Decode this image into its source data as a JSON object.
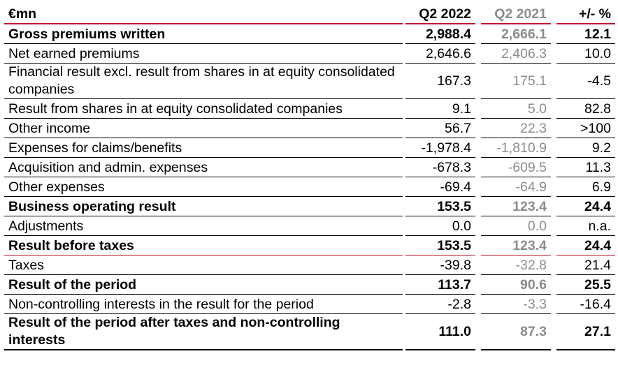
{
  "header": {
    "unit": "€mn",
    "col_q2_2022": "Q2 2022",
    "col_q2_2021": "Q2 2021",
    "col_change": "+/- %"
  },
  "rows": [
    {
      "label": "Gross premiums written",
      "q2_2022": "2,988.4",
      "q2_2021": "2,666.1",
      "change": "12.1",
      "bold": true
    },
    {
      "label": "Net earned premiums",
      "q2_2022": "2,646.6",
      "q2_2021": "2,406.3",
      "change": "10.0",
      "bold": false
    },
    {
      "label": "Financial result excl. result from shares in at equity consolidated companies",
      "q2_2022": "167.3",
      "q2_2021": "175.1",
      "change": "-4.5",
      "bold": false
    },
    {
      "label": "Result from shares in at equity consolidated companies",
      "q2_2022": "9.1",
      "q2_2021": "5.0",
      "change": "82.8",
      "bold": false
    },
    {
      "label": "Other income",
      "q2_2022": "56.7",
      "q2_2021": "22.3",
      "change": ">100",
      "bold": false
    },
    {
      "label": "Expenses for claims/benefits",
      "q2_2022": "-1,978.4",
      "q2_2021": "-1,810.9",
      "change": "9.2",
      "bold": false
    },
    {
      "label": "Acquisition and admin. expenses",
      "q2_2022": "-678.3",
      "q2_2021": "-609.5",
      "change": "11.3",
      "bold": false
    },
    {
      "label": "Other expenses",
      "q2_2022": "-69.4",
      "q2_2021": "-64.9",
      "change": "6.9",
      "bold": false
    },
    {
      "label": "Business operating result",
      "q2_2022": "153.5",
      "q2_2021": "123.4",
      "change": "24.4",
      "bold": true
    },
    {
      "label": "Adjustments",
      "q2_2022": "0.0",
      "q2_2021": "0.0",
      "change": "n.a.",
      "bold": false
    },
    {
      "label": "Result before taxes",
      "q2_2022": "153.5",
      "q2_2021": "123.4",
      "change": "24.4",
      "bold": true
    },
    {
      "label": "Taxes",
      "q2_2022": "-39.8",
      "q2_2021": "-32.8",
      "change": "21.4",
      "bold": false
    },
    {
      "label": "Result of the period",
      "q2_2022": "113.7",
      "q2_2021": "90.6",
      "change": "25.5",
      "bold": true
    },
    {
      "label": "Non-controlling interests in the result for the period",
      "q2_2022": "-2.8",
      "q2_2021": "-3.3",
      "change": "-16.4",
      "bold": false
    },
    {
      "label": "Result of the period after taxes and non-controlling interests",
      "q2_2022": "111.0",
      "q2_2021": "87.3",
      "change": "27.1",
      "bold": true
    }
  ],
  "colors": {
    "accent_red": "#c8102e",
    "prior_year_grey": "#8c8c8c"
  }
}
